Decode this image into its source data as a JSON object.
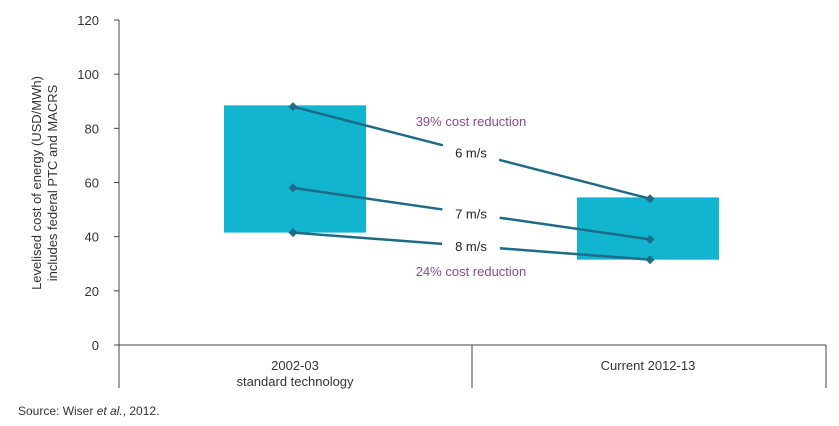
{
  "chart_data": {
    "type": "range-bar-with-lines",
    "categories": [
      "2002-03",
      "Current  2012-13"
    ],
    "category_sublabels": [
      "standard technology",
      ""
    ],
    "ylabel_lines": [
      "Levelised cost of energy (USD/MWh)",
      "includes federal PTC and MACRS"
    ],
    "ylim": [
      0,
      120
    ],
    "yticks": [
      "0",
      "20",
      "40",
      "60",
      "80",
      "100",
      "120"
    ],
    "ranges": [
      {
        "category": "2002-03",
        "low": 41.5,
        "high": 88.5
      },
      {
        "category": "Current  2012-13",
        "low": 31.5,
        "high": 54.5
      }
    ],
    "series": [
      {
        "name": "6 m/s",
        "values": [
          88,
          54
        ]
      },
      {
        "name": "7 m/s",
        "values": [
          58,
          39
        ]
      },
      {
        "name": "8 m/s",
        "values": [
          41.5,
          31.5
        ]
      }
    ],
    "annotations": [
      "39% cost reduction",
      "24% cost reduction"
    ],
    "colors": {
      "bar": "#12b5cf",
      "line": "#1d6b86",
      "annotation": "#8b4a8f",
      "axis": "#444444"
    }
  },
  "source": {
    "prefix": "Source: Wiser ",
    "italic": "et al.",
    "suffix": ", 2012."
  }
}
